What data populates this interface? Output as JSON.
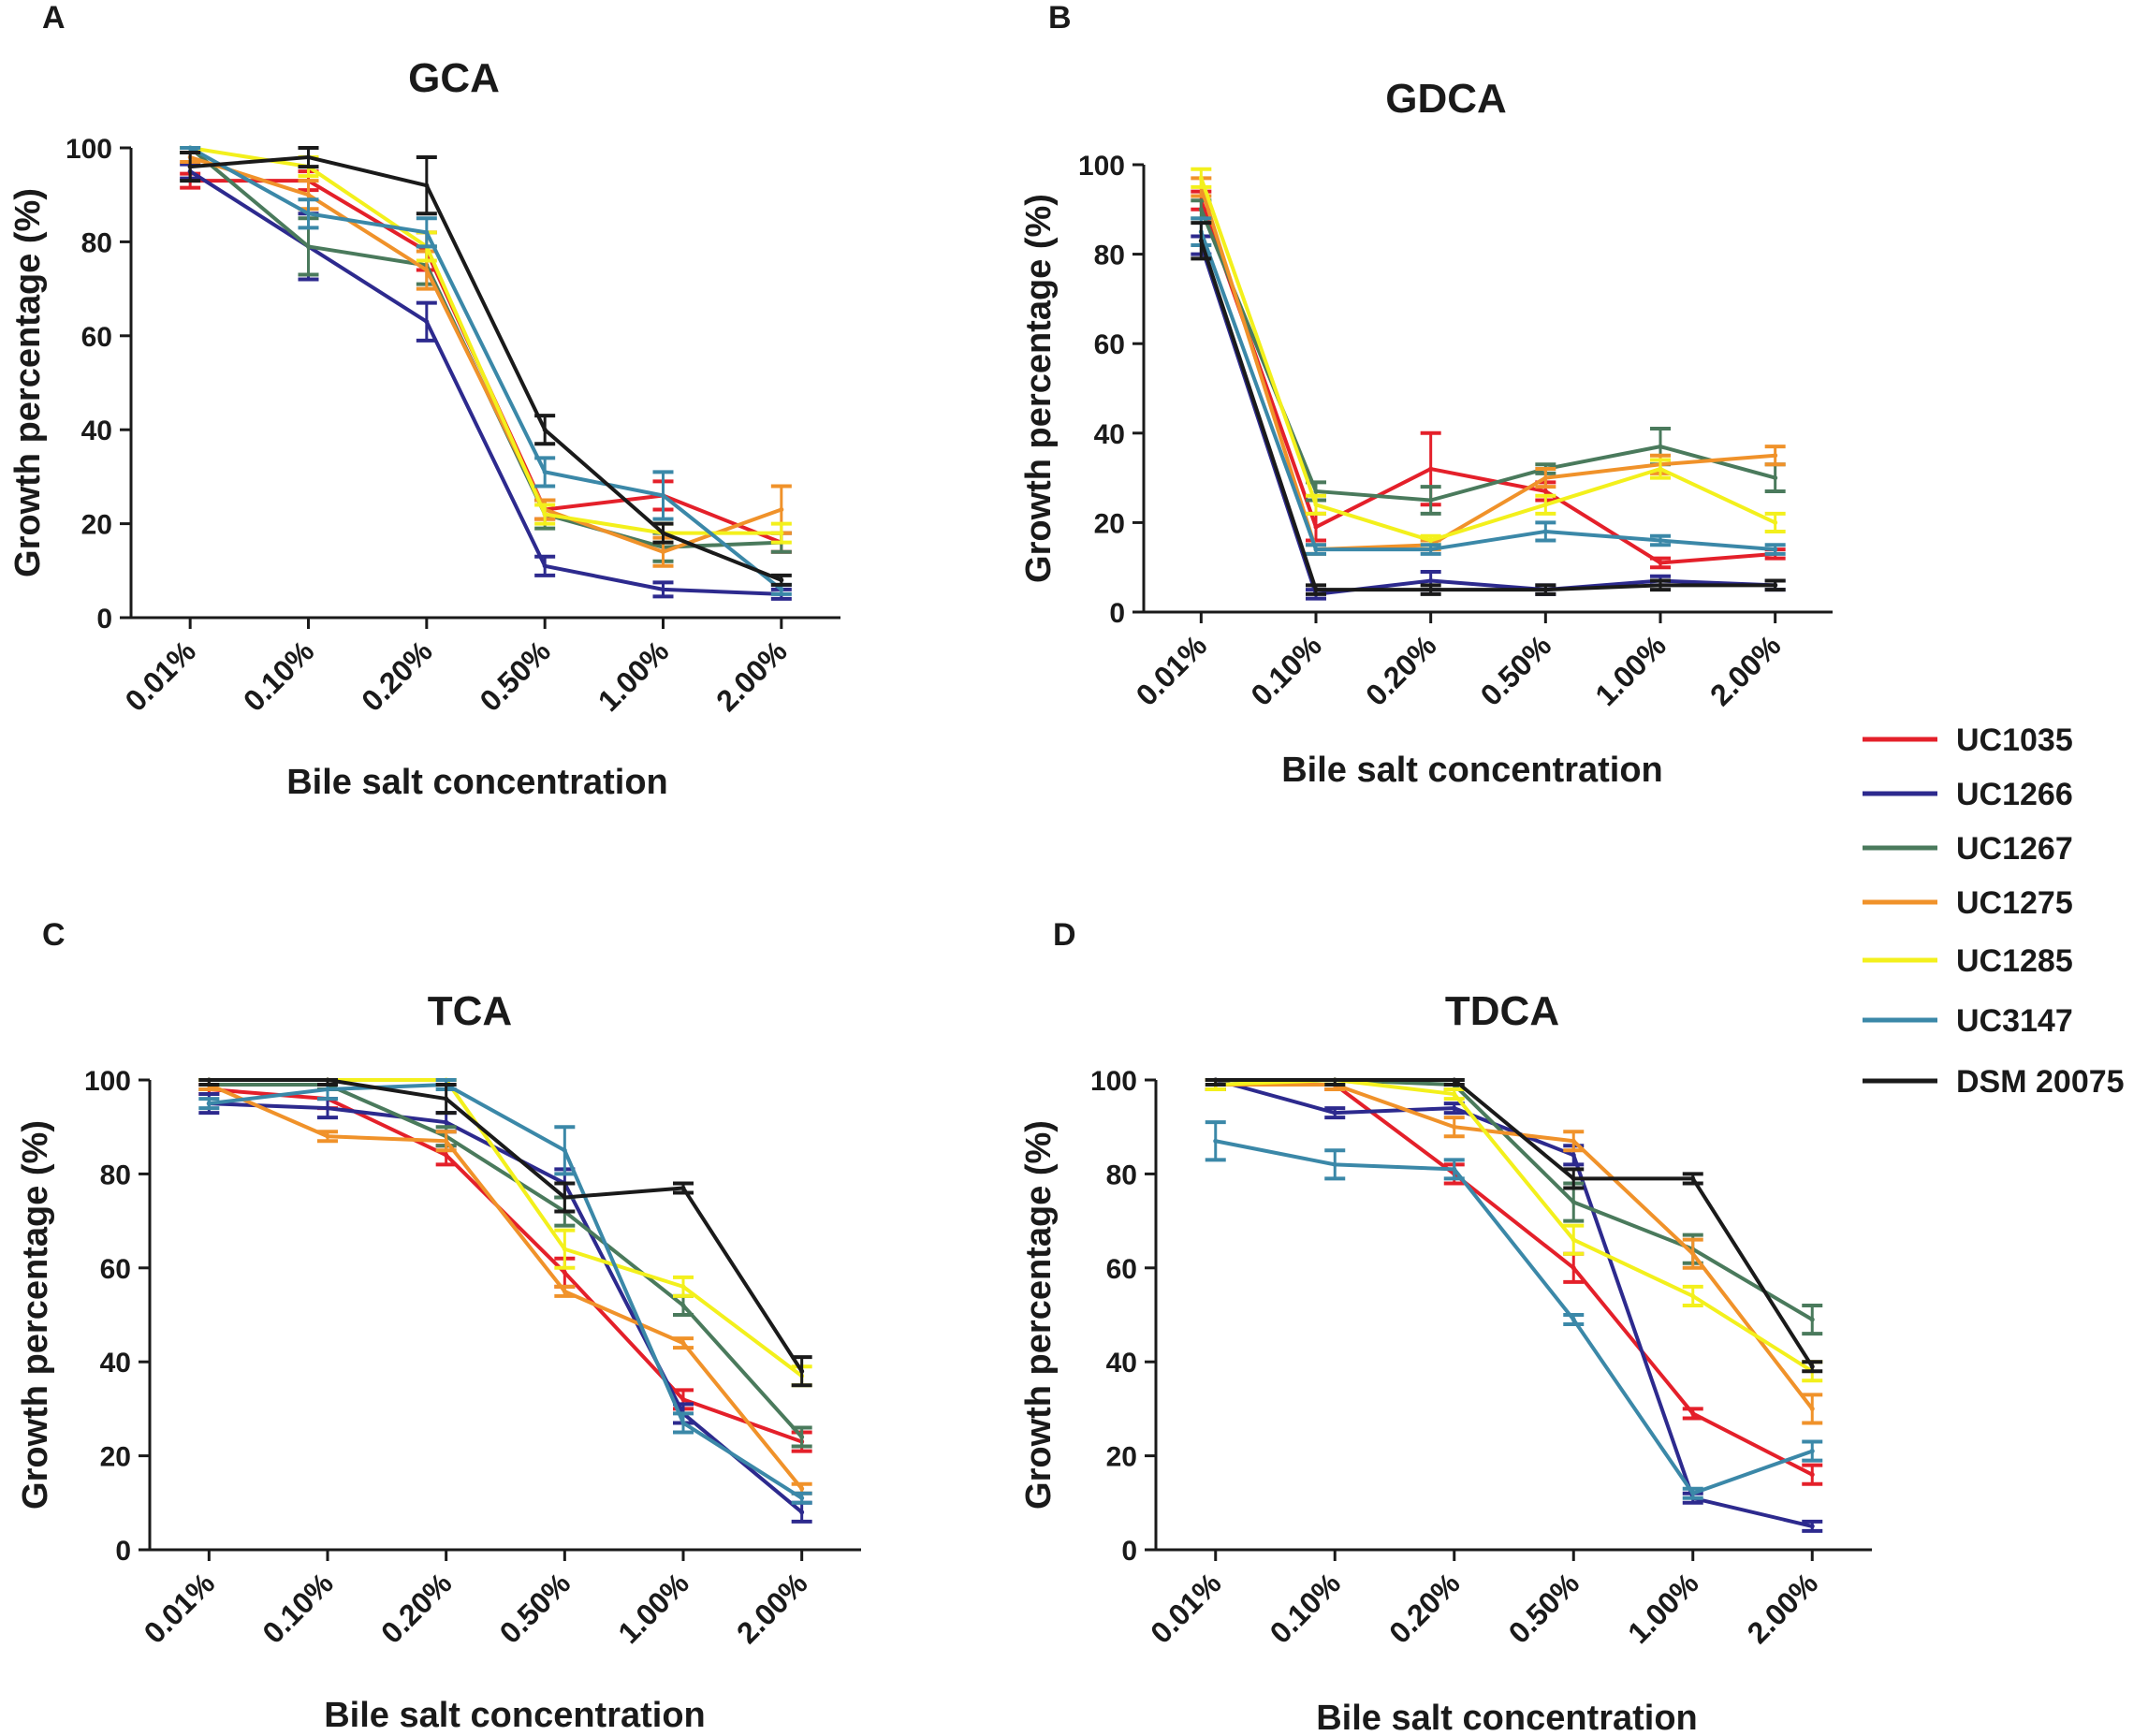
{
  "legend": [
    {
      "name": "UC1035",
      "color": "#e4202a"
    },
    {
      "name": "UC1266",
      "color": "#2d2a8e"
    },
    {
      "name": "UC1267",
      "color": "#4a7a5c"
    },
    {
      "name": "UC1275",
      "color": "#f0922a"
    },
    {
      "name": "UC1285",
      "color": "#f3f01c"
    },
    {
      "name": "UC3147",
      "color": "#3b88a8"
    },
    {
      "name": "DSM 20075",
      "color": "#1a1a1a"
    }
  ],
  "chart_data": [
    {
      "panel": "A",
      "type": "line",
      "title": "GCA",
      "xlabel": "Bile salt concentration",
      "ylabel": "Growth percentage (%)",
      "categories": [
        "0.01%",
        "0.10%",
        "0.20%",
        "0.50%",
        "1.00%",
        "2.00%"
      ],
      "ylim": [
        0,
        100
      ],
      "yticks": [
        0,
        20,
        40,
        60,
        80,
        100
      ],
      "series": [
        {
          "name": "UC1035",
          "values": [
            93,
            93,
            78,
            23,
            26,
            16
          ],
          "errors": [
            1.5,
            2,
            4,
            2,
            3,
            2
          ]
        },
        {
          "name": "UC1266",
          "values": [
            95,
            79,
            63,
            11,
            6,
            5
          ],
          "errors": [
            1.5,
            7,
            4,
            2,
            1.5,
            1
          ]
        },
        {
          "name": "UC1267",
          "values": [
            100,
            79,
            75,
            22,
            15,
            16
          ],
          "errors": [
            1,
            6,
            4,
            3,
            3,
            2
          ]
        },
        {
          "name": "UC1275",
          "values": [
            98,
            90,
            74,
            23,
            14,
            23
          ],
          "errors": [
            1,
            3,
            4,
            2,
            3,
            5
          ]
        },
        {
          "name": "UC1285",
          "values": [
            100,
            96,
            79,
            22,
            18,
            18
          ],
          "errors": [
            1,
            2,
            3,
            2,
            2,
            2
          ]
        },
        {
          "name": "UC3147",
          "values": [
            100,
            86,
            82,
            31,
            26,
            6
          ],
          "errors": [
            1,
            3,
            3,
            3,
            5,
            1
          ]
        },
        {
          "name": "DSM 20075",
          "values": [
            96,
            98,
            92,
            40,
            18,
            8
          ],
          "errors": [
            3,
            2,
            6,
            3,
            2,
            1
          ]
        }
      ]
    },
    {
      "panel": "B",
      "type": "line",
      "title": "GDCA",
      "xlabel": "Bile salt concentration",
      "ylabel": "Growth percentage (%)",
      "categories": [
        "0.01%",
        "0.10%",
        "0.20%",
        "0.50%",
        "1.00%",
        "2.00%"
      ],
      "ylim": [
        0,
        100
      ],
      "yticks": [
        0,
        20,
        40,
        60,
        80,
        100
      ],
      "series": [
        {
          "name": "UC1035",
          "values": [
            92,
            19,
            32,
            27,
            11,
            13
          ],
          "errors": [
            2,
            3,
            8,
            2,
            1,
            1
          ]
        },
        {
          "name": "UC1266",
          "values": [
            82,
            4,
            7,
            5,
            7,
            6
          ],
          "errors": [
            2,
            1,
            2,
            1,
            1,
            1
          ]
        },
        {
          "name": "UC1267",
          "values": [
            90,
            27,
            25,
            32,
            37,
            30
          ],
          "errors": [
            2,
            2,
            3,
            1,
            4,
            3
          ]
        },
        {
          "name": "UC1275",
          "values": [
            95,
            14,
            15,
            30,
            33,
            35
          ],
          "errors": [
            2,
            1,
            1,
            2,
            2,
            2
          ]
        },
        {
          "name": "UC1285",
          "values": [
            97,
            24,
            16,
            24,
            32,
            20
          ],
          "errors": [
            2,
            2,
            1,
            2,
            2,
            2
          ]
        },
        {
          "name": "UC3147",
          "values": [
            85,
            14,
            14,
            18,
            16,
            14
          ],
          "errors": [
            3,
            1,
            1,
            2,
            1,
            1
          ]
        },
        {
          "name": "DSM 20075",
          "values": [
            83,
            5,
            5,
            5,
            6,
            6
          ],
          "errors": [
            4,
            1,
            1,
            1,
            1,
            1
          ]
        }
      ]
    },
    {
      "panel": "C",
      "type": "line",
      "title": "TCA",
      "xlabel": "Bile salt concentration",
      "ylabel": "Growth percentage (%)",
      "categories": [
        "0.01%",
        "0.10%",
        "0.20%",
        "0.50%",
        "1.00%",
        "2.00%"
      ],
      "ylim": [
        0,
        100
      ],
      "yticks": [
        0,
        20,
        40,
        60,
        80,
        100
      ],
      "series": [
        {
          "name": "UC1035",
          "values": [
            98,
            96,
            84,
            59,
            32,
            23
          ],
          "errors": [
            1,
            2,
            2,
            3,
            2,
            2
          ]
        },
        {
          "name": "UC1266",
          "values": [
            95,
            94,
            91,
            78,
            29,
            8
          ],
          "errors": [
            2,
            2,
            2,
            3,
            2,
            2
          ]
        },
        {
          "name": "UC1267",
          "values": [
            99,
            99,
            88,
            72,
            52,
            24
          ],
          "errors": [
            1,
            1,
            2,
            3,
            2,
            2
          ]
        },
        {
          "name": "UC1275",
          "values": [
            99,
            88,
            87,
            55,
            44,
            13
          ],
          "errors": [
            1,
            1,
            2,
            1,
            1,
            1
          ]
        },
        {
          "name": "UC1285",
          "values": [
            100,
            100,
            100,
            64,
            56,
            37
          ],
          "errors": [
            0,
            0,
            0,
            4,
            2,
            2
          ]
        },
        {
          "name": "UC3147",
          "values": [
            95,
            98,
            99,
            85,
            27,
            11
          ],
          "errors": [
            1,
            2,
            1,
            5,
            2,
            1
          ]
        },
        {
          "name": "DSM 20075",
          "values": [
            100,
            100,
            96,
            75,
            77,
            38
          ],
          "errors": [
            1,
            1,
            3,
            3,
            1,
            3
          ]
        }
      ]
    },
    {
      "panel": "D",
      "type": "line",
      "title": "TDCA",
      "xlabel": "Bile salt concentration",
      "ylabel": "Growth percentage (%)",
      "categories": [
        "0.01%",
        "0.10%",
        "0.20%",
        "0.50%",
        "1.00%",
        "2.00%"
      ],
      "ylim": [
        0,
        100
      ],
      "yticks": [
        0,
        20,
        40,
        60,
        80,
        100
      ],
      "series": [
        {
          "name": "UC1035",
          "values": [
            99,
            99,
            80,
            60,
            29,
            16
          ],
          "errors": [
            1,
            1,
            2,
            3,
            1,
            2
          ]
        },
        {
          "name": "UC1266",
          "values": [
            100,
            93,
            94,
            84,
            11,
            5
          ],
          "errors": [
            0,
            1,
            1,
            2,
            1,
            1
          ]
        },
        {
          "name": "UC1267",
          "values": [
            99,
            100,
            99,
            74,
            64,
            49
          ],
          "errors": [
            1,
            1,
            1,
            4,
            3,
            3
          ]
        },
        {
          "name": "UC1275",
          "values": [
            99,
            99,
            90,
            87,
            63,
            30
          ],
          "errors": [
            1,
            1,
            2,
            2,
            3,
            3
          ]
        },
        {
          "name": "UC1285",
          "values": [
            99,
            100,
            97,
            66,
            54,
            38
          ],
          "errors": [
            1,
            1,
            1,
            3,
            2,
            2
          ]
        },
        {
          "name": "UC3147",
          "values": [
            87,
            82,
            81,
            49,
            12,
            21
          ],
          "errors": [
            4,
            3,
            2,
            1,
            1,
            2
          ]
        },
        {
          "name": "DSM 20075",
          "values": [
            100,
            100,
            100,
            79,
            79,
            39
          ],
          "errors": [
            1,
            1,
            1,
            2,
            1,
            1
          ]
        }
      ]
    }
  ]
}
